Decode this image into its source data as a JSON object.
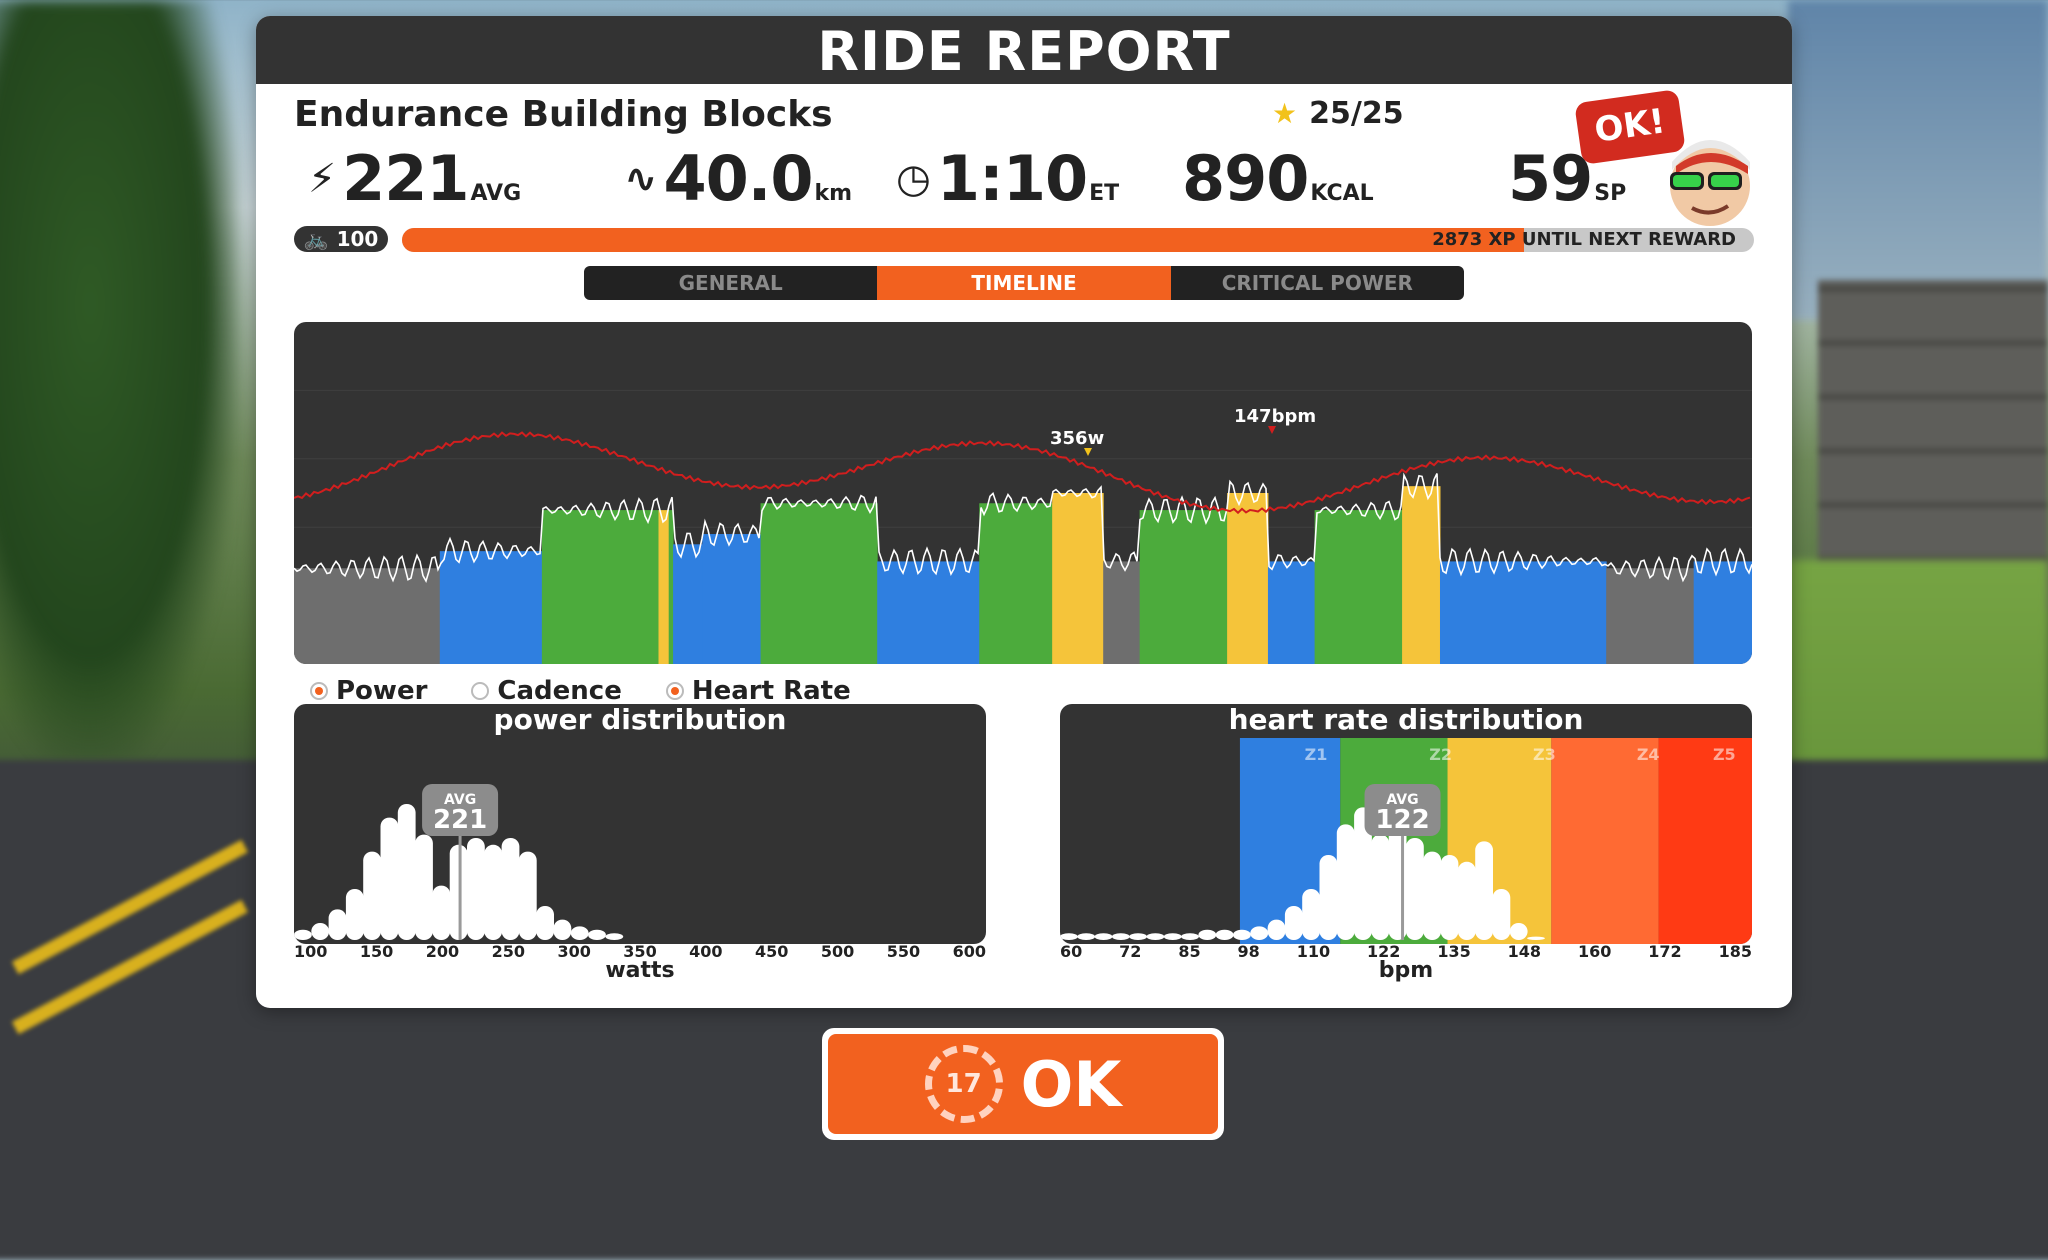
{
  "header": {
    "title": "RIDE REPORT"
  },
  "workout": {
    "name": "Endurance Building Blocks",
    "stars": "25/25"
  },
  "stats": {
    "power": {
      "value": "221",
      "unit": "AVG",
      "icon": "lightning-icon"
    },
    "distance": {
      "value": "40.0",
      "unit": "km",
      "icon": "route-icon"
    },
    "time": {
      "value": "1:10",
      "unit": "ET",
      "icon": "clock-icon"
    },
    "calories": {
      "value": "890",
      "unit": "KCAL"
    },
    "sport_points": {
      "value": "59",
      "unit": "SP"
    }
  },
  "ok_badge": "OK!",
  "level": {
    "value": "100",
    "icon": "bike-icon"
  },
  "xp": {
    "text": "2873 XP UNTIL NEXT REWARD",
    "progress_fraction": 0.83
  },
  "tabs": [
    {
      "label": "GENERAL",
      "active": false
    },
    {
      "label": "TIMELINE",
      "active": true
    },
    {
      "label": "CRITICAL POWER",
      "active": false
    }
  ],
  "timeline": {
    "peak_power_label": "356w",
    "peak_hr_label": "147bpm"
  },
  "legend": [
    {
      "label": "Power",
      "selected": true
    },
    {
      "label": "Cadence",
      "selected": false
    },
    {
      "label": "Heart Rate",
      "selected": true
    }
  ],
  "power_distribution": {
    "title": "power distribution",
    "avg_label": "AVG",
    "avg_value": "221",
    "ticks": [
      "100",
      "150",
      "200",
      "250",
      "300",
      "350",
      "400",
      "450",
      "500",
      "550",
      "600"
    ],
    "xlabel": "watts"
  },
  "hr_distribution": {
    "title": "heart rate distribution",
    "avg_label": "AVG",
    "avg_value": "122",
    "zones": [
      "Z1",
      "Z2",
      "Z3",
      "Z4",
      "Z5"
    ],
    "ticks": [
      "60",
      "72",
      "85",
      "98",
      "110",
      "122",
      "135",
      "148",
      "160",
      "172",
      "185"
    ],
    "xlabel": "bpm"
  },
  "ok_button": {
    "label": "OK",
    "countdown": "17"
  },
  "colors": {
    "accent": "#f2611f",
    "zone_gray": "#6e6e6e",
    "zone_blue": "#2f7fe0",
    "zone_green": "#4cab3c",
    "zone_yellow": "#f5c43a",
    "zone_orange": "#ff6a33",
    "zone_red": "#ff3a14"
  }
}
